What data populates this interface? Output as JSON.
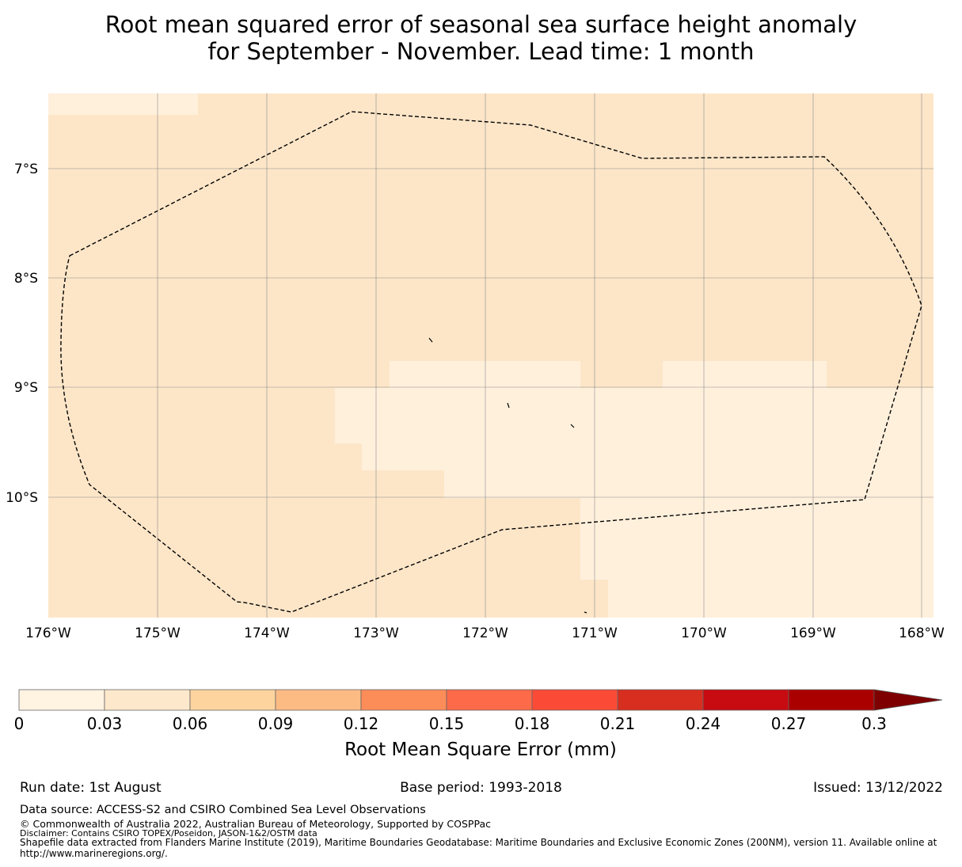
{
  "title": {
    "line1": "Root mean squared error of seasonal sea surface height anomaly",
    "line2": "for September - November. Lead time: 1 month"
  },
  "map": {
    "lat_ticks": [
      "7°S",
      "8°S",
      "9°S",
      "10°S"
    ],
    "lon_ticks": [
      "176°W",
      "175°W",
      "174°W",
      "173°W",
      "172°W",
      "171°W",
      "170°W",
      "169°W",
      "168°W"
    ],
    "colors": {
      "low": "#fff0dc",
      "mid": "#fde6c8",
      "boundary": "#000000",
      "grid": "#888888"
    }
  },
  "colorbar": {
    "ticks": [
      "0",
      "0.03",
      "0.06",
      "0.09",
      "0.12",
      "0.15",
      "0.18",
      "0.21",
      "0.24",
      "0.27",
      "0.3"
    ],
    "colors": [
      "#fff3e2",
      "#fee8cb",
      "#fdd49e",
      "#fdbb84",
      "#fc8d59",
      "#fc6a4a",
      "#fb4b37",
      "#d72e1f",
      "#c70b11",
      "#ab0000",
      "#7f0000"
    ],
    "label": "Root Mean Square Error (mm)"
  },
  "footer": {
    "run_date": "Run date: 1st August",
    "base_period": "Base period: 1993-2018",
    "issued": "Issued: 13/12/2022",
    "data_source": "Data source: ACCESS-S2 and CSIRO Combined Sea Level Observations",
    "copyright": "© Commonwealth of Australia 2022, Australian Bureau of Meteorology, Supported by COSPPac",
    "disclaimer": "Disclaimer: Contains CSIRO TOPEX/Poseidon, JASON-1&2/OSTM data",
    "shapefile": "Shapefile data extracted from Flanders Marine Institute (2019), Maritime Boundaries Geodatabase: Maritime Boundaries and Exclusive Economic Zones (200NM), version 11. Available online at http://www.marineregions.org/."
  }
}
